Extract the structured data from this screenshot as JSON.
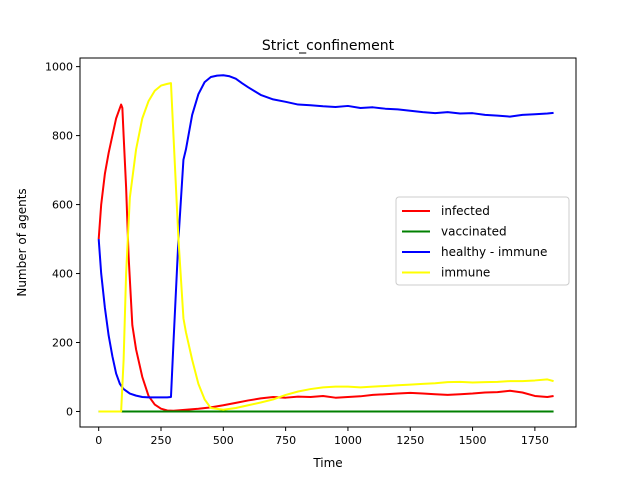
{
  "chart_data": {
    "type": "line",
    "title": "Strict_confinement",
    "xlabel": "Time",
    "ylabel": "Number of agents",
    "xlim": [
      -75,
      1915
    ],
    "ylim": [
      -45,
      1025
    ],
    "x_ticks": [
      0,
      250,
      500,
      750,
      1000,
      1250,
      1500,
      1750
    ],
    "x_tick_labels": [
      "0",
      "250",
      "500",
      "750",
      "1000",
      "1250",
      "1500",
      "1750"
    ],
    "y_ticks": [
      0,
      200,
      400,
      600,
      800,
      1000
    ],
    "y_tick_labels": [
      "0",
      "200",
      "400",
      "600",
      "800",
      "1000"
    ],
    "grid": false,
    "legend_position": "center-right",
    "series": [
      {
        "name": "infected",
        "color": "#ff0000",
        "x": [
          0,
          10,
          25,
          40,
          55,
          70,
          80,
          90,
          95,
          100,
          110,
          120,
          135,
          150,
          175,
          200,
          225,
          250,
          275,
          300,
          350,
          400,
          450,
          500,
          550,
          600,
          650,
          700,
          750,
          800,
          850,
          900,
          950,
          1000,
          1050,
          1100,
          1150,
          1200,
          1250,
          1300,
          1350,
          1400,
          1450,
          1500,
          1550,
          1600,
          1650,
          1700,
          1750,
          1800,
          1825
        ],
        "y": [
          500,
          600,
          690,
          750,
          800,
          850,
          870,
          890,
          880,
          800,
          650,
          450,
          250,
          180,
          100,
          45,
          20,
          8,
          3,
          2,
          5,
          8,
          12,
          18,
          25,
          32,
          38,
          42,
          40,
          43,
          42,
          45,
          40,
          42,
          44,
          48,
          50,
          52,
          54,
          52,
          50,
          48,
          50,
          52,
          55,
          56,
          60,
          55,
          45,
          42,
          45
        ]
      },
      {
        "name": "vaccinated",
        "color": "#008000",
        "x": [
          0,
          1825
        ],
        "y": [
          0,
          0
        ]
      },
      {
        "name": "healthy - immune",
        "color": "#0000ff",
        "x": [
          0,
          10,
          25,
          40,
          55,
          70,
          85,
          100,
          125,
          150,
          175,
          200,
          225,
          250,
          275,
          290,
          300,
          320,
          340,
          350,
          375,
          400,
          425,
          450,
          475,
          500,
          525,
          550,
          575,
          600,
          650,
          700,
          750,
          800,
          850,
          900,
          950,
          1000,
          1050,
          1100,
          1150,
          1200,
          1250,
          1300,
          1350,
          1400,
          1450,
          1500,
          1550,
          1600,
          1650,
          1700,
          1750,
          1800,
          1825
        ],
        "y": [
          500,
          400,
          300,
          220,
          160,
          110,
          80,
          65,
          52,
          46,
          42,
          41,
          41,
          41,
          41,
          42,
          200,
          500,
          730,
          760,
          860,
          920,
          955,
          970,
          974,
          975,
          972,
          965,
          952,
          940,
          918,
          905,
          898,
          890,
          888,
          885,
          883,
          886,
          880,
          882,
          878,
          876,
          872,
          868,
          865,
          868,
          864,
          865,
          860,
          858,
          855,
          860,
          862,
          864,
          866
        ]
      },
      {
        "name": "immune",
        "color": "#ffff00",
        "x": [
          0,
          80,
          90,
          100,
          110,
          125,
          150,
          175,
          200,
          225,
          250,
          275,
          290,
          300,
          320,
          340,
          350,
          375,
          400,
          425,
          450,
          500,
          550,
          600,
          650,
          700,
          750,
          800,
          850,
          900,
          950,
          1000,
          1050,
          1100,
          1150,
          1200,
          1250,
          1300,
          1350,
          1400,
          1450,
          1500,
          1550,
          1600,
          1650,
          1700,
          1750,
          1800,
          1825
        ],
        "y": [
          0,
          0,
          0,
          150,
          400,
          620,
          760,
          850,
          900,
          930,
          945,
          950,
          952,
          800,
          500,
          270,
          230,
          150,
          80,
          35,
          10,
          5,
          10,
          18,
          26,
          35,
          48,
          58,
          65,
          70,
          72,
          72,
          70,
          72,
          74,
          76,
          78,
          80,
          82,
          85,
          86,
          84,
          85,
          86,
          88,
          88,
          90,
          93,
          88
        ]
      }
    ]
  }
}
